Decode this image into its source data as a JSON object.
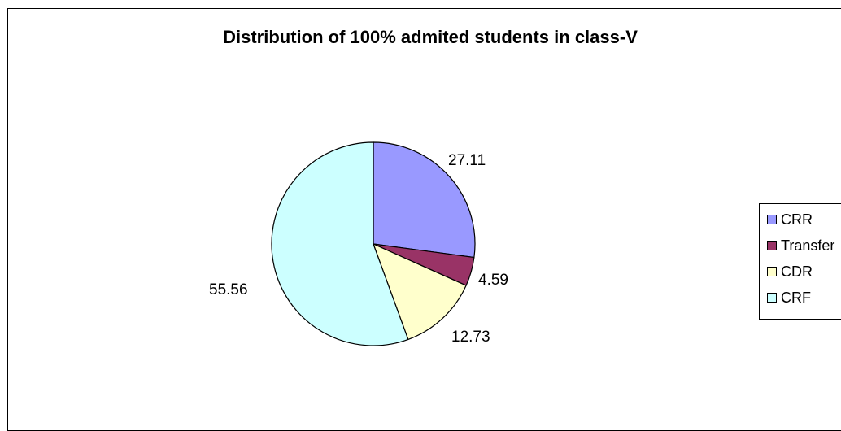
{
  "chart_data": {
    "type": "pie",
    "title": "Distribution of 100% admited students in class-V",
    "categories": [
      "CRR",
      "Transfer",
      "CDR",
      "CRF"
    ],
    "values": [
      27.11,
      4.59,
      12.73,
      55.56
    ],
    "colors": [
      "#9999ff",
      "#993366",
      "#ffffcc",
      "#ccffff"
    ],
    "data_labels": [
      "27.11",
      "4.59",
      "12.73",
      "55.56"
    ],
    "legend_position": "right",
    "start_angle": "12 o'clock, clockwise"
  }
}
